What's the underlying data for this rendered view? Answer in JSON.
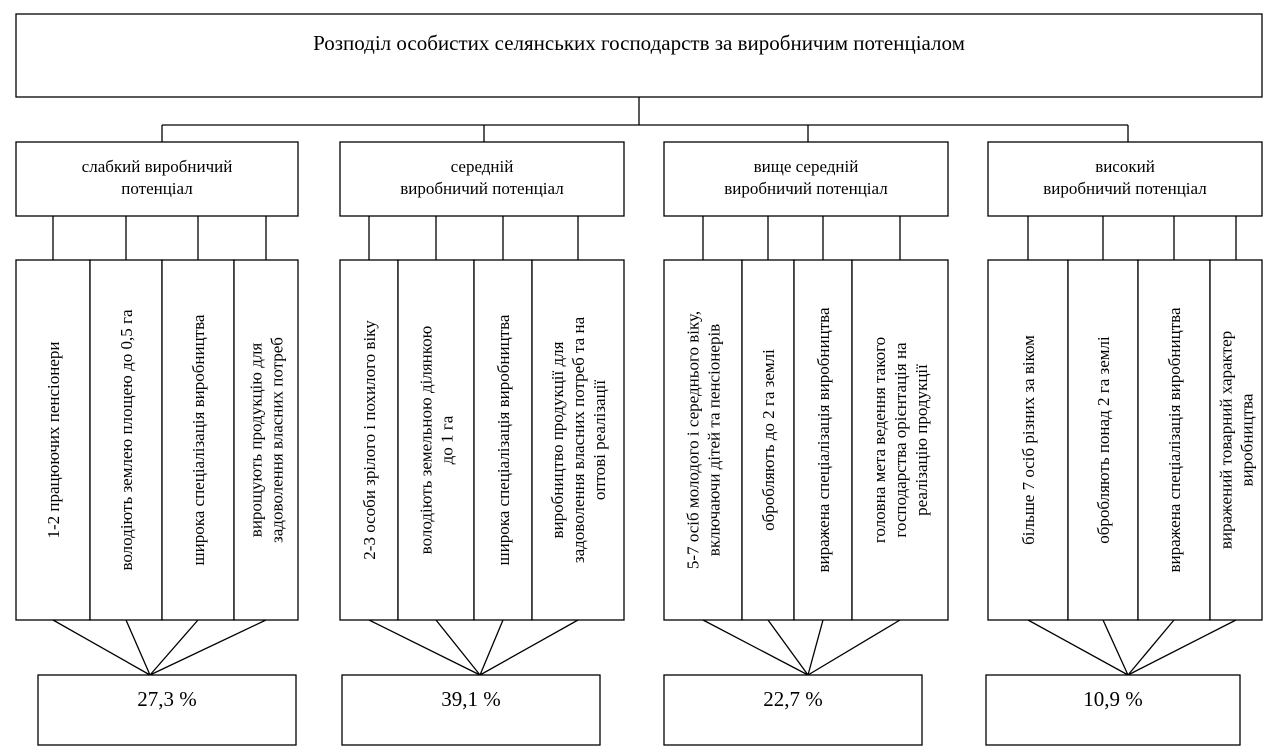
{
  "title": "Розподіл особистих селянських господарств за виробничим потенціалом",
  "groups": [
    {
      "label": [
        "слабкий виробничий",
        "потенціал"
      ],
      "features": [
        [
          "1-2 працюючих пенсіонери"
        ],
        [
          "володіють землею площею до 0,5 га"
        ],
        [
          "широка спеціалізація виробництва"
        ],
        [
          "вирощують продукцію для",
          "задоволення власних потреб"
        ]
      ],
      "share": "27,3 %"
    },
    {
      "label": [
        "середній",
        "виробничий потенціал"
      ],
      "features": [
        [
          "2-3 особи зрілого і похилого віку"
        ],
        [
          "володіють земельною ділянкою",
          "до 1 га"
        ],
        [
          "широка спеціалізація виробництва"
        ],
        [
          "виробництво продукції для",
          "задоволення власних потреб та на",
          "оптові реалізації"
        ]
      ],
      "share": "39,1 %"
    },
    {
      "label": [
        "вище середній",
        "виробничий потенціал"
      ],
      "features": [
        [
          "5-7 осіб молодого і середнього віку,",
          "включаючи дітей та пенсіонерів"
        ],
        [
          "обробляють до 2 га землі"
        ],
        [
          "виражена спеціалізація виробництва"
        ],
        [
          "головна мета ведення такого",
          "господарства орієнтація на",
          "реалізацію продукції"
        ]
      ],
      "share": "22,7 %"
    },
    {
      "label": [
        "високий",
        "виробничий потенціал"
      ],
      "features": [
        [
          "більше 7 осіб різних за віком"
        ],
        [
          "обробляють понад 2 га землі"
        ],
        [
          "виражена спеціалізація виробництва"
        ],
        [
          "виражений товарний характер",
          "виробництва"
        ]
      ],
      "share": "10,9 %"
    }
  ]
}
